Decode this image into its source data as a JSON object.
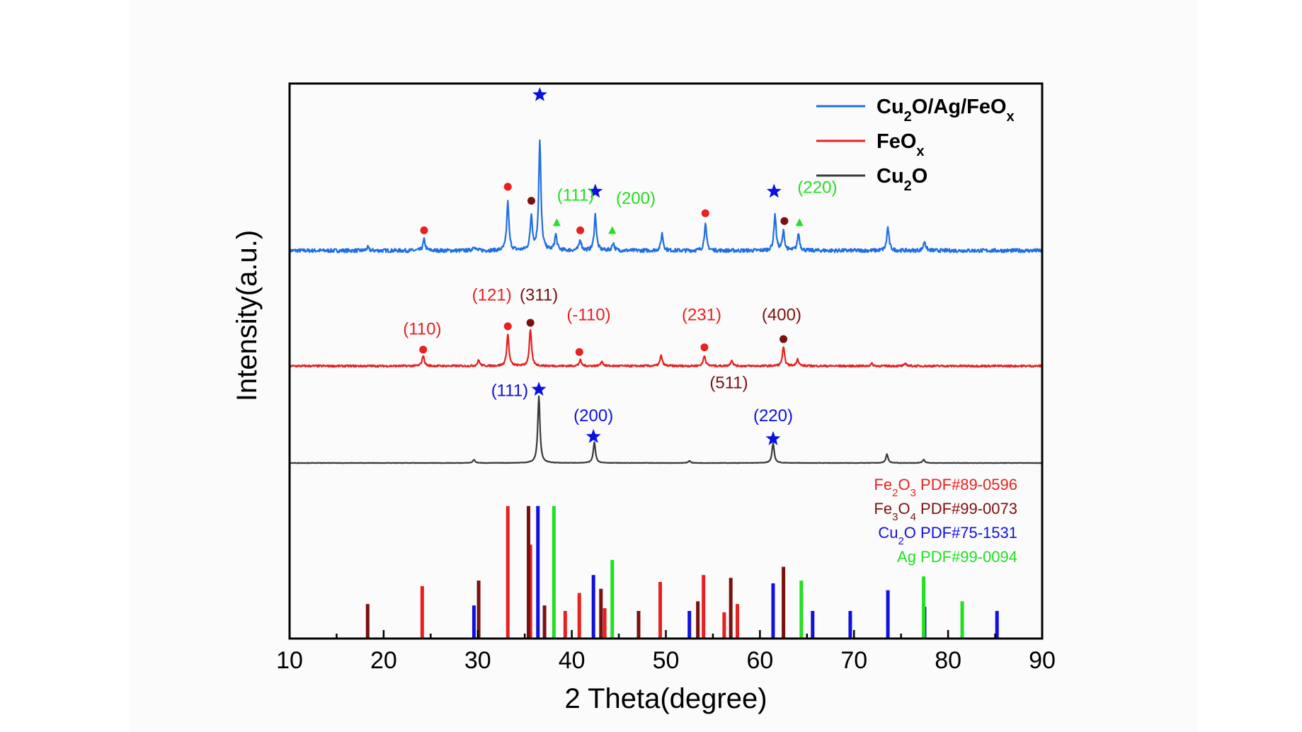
{
  "chart_data": {
    "type": "line",
    "title": "",
    "xlabel": "2 Theta(degree)",
    "ylabel": "Intensity(a.u.)",
    "xlim": [
      10,
      90
    ],
    "xticks": [
      "10",
      "20",
      "30",
      "40",
      "50",
      "60",
      "70",
      "80",
      "90"
    ],
    "legend": {
      "placement": "top-right",
      "entries": [
        {
          "main": "Cu",
          "sub1": "2",
          "mid": "O/Ag/FeO",
          "sub2": "x",
          "color": "#1f6fe0"
        },
        {
          "main": "FeO",
          "sub1": "x",
          "mid": "",
          "sub2": "",
          "color": "#e82020"
        },
        {
          "main": "Cu",
          "sub1": "2",
          "mid": "O",
          "sub2": "",
          "color": "#3a3a3a"
        }
      ]
    },
    "series": [
      {
        "name": "Cu2O/Ag/FeOx",
        "color": "#1f6fe0",
        "offset": 0.0,
        "noise": 0.012,
        "peaks": [
          [
            18.3,
            0.02
          ],
          [
            24.3,
            0.07
          ],
          [
            29.6,
            0.03
          ],
          [
            33.2,
            0.31
          ],
          [
            35.7,
            0.22
          ],
          [
            36.6,
            0.7
          ],
          [
            38.3,
            0.1
          ],
          [
            40.9,
            0.07
          ],
          [
            42.5,
            0.23
          ],
          [
            44.4,
            0.05
          ],
          [
            49.6,
            0.11
          ],
          [
            54.2,
            0.17
          ],
          [
            61.6,
            0.23
          ],
          [
            62.5,
            0.12
          ],
          [
            64.1,
            0.11
          ],
          [
            73.6,
            0.15
          ],
          [
            77.5,
            0.06
          ]
        ]
      },
      {
        "name": "FeOx",
        "color": "#e82020",
        "offset": 0.0,
        "noise": 0.008,
        "peaks": [
          [
            24.2,
            0.09
          ],
          [
            30.1,
            0.05
          ],
          [
            33.2,
            0.27
          ],
          [
            35.6,
            0.31
          ],
          [
            40.9,
            0.05
          ],
          [
            43.2,
            0.04
          ],
          [
            49.5,
            0.09
          ],
          [
            54.1,
            0.09
          ],
          [
            57.0,
            0.05
          ],
          [
            62.5,
            0.16
          ],
          [
            64.0,
            0.06
          ],
          [
            71.9,
            0.02
          ],
          [
            75.5,
            0.02
          ]
        ]
      },
      {
        "name": "Cu2O",
        "color": "#3a3a3a",
        "offset": 0.0,
        "noise": 0.002,
        "peaks": [
          [
            29.6,
            0.03
          ],
          [
            36.5,
            0.61
          ],
          [
            42.4,
            0.19
          ],
          [
            52.5,
            0.02
          ],
          [
            61.4,
            0.18
          ],
          [
            73.5,
            0.08
          ],
          [
            77.4,
            0.03
          ]
        ]
      }
    ],
    "reference_patterns": [
      {
        "label_pre": "Fe",
        "label_sub1": "2",
        "label_mid": "O",
        "label_sub2": "3",
        "label_post": " PDF#89-0596",
        "color": "#e82020",
        "lines": [
          [
            24.1,
            0.38
          ],
          [
            33.2,
            0.96
          ],
          [
            35.6,
            0.68
          ],
          [
            39.3,
            0.2
          ],
          [
            40.8,
            0.33
          ],
          [
            43.5,
            0.22
          ],
          [
            49.4,
            0.41
          ],
          [
            54.0,
            0.46
          ],
          [
            56.2,
            0.19
          ],
          [
            57.6,
            0.25
          ]
        ]
      },
      {
        "label_pre": "Fe",
        "label_sub1": "3",
        "label_mid": "O",
        "label_sub2": "4",
        "label_post": " PDF#99-0073",
        "color": "#7b1010",
        "lines": [
          [
            18.3,
            0.25
          ],
          [
            30.1,
            0.42
          ],
          [
            35.4,
            0.96
          ],
          [
            37.1,
            0.24
          ],
          [
            43.1,
            0.36
          ],
          [
            47.1,
            0.2
          ],
          [
            53.4,
            0.27
          ],
          [
            56.9,
            0.44
          ],
          [
            62.5,
            0.52
          ]
        ]
      },
      {
        "label_pre": "Cu",
        "label_sub1": "2",
        "label_mid": "O",
        "label_sub2": "",
        "label_post": "  PDF#75-1531",
        "color": "#1010e0",
        "lines": [
          [
            29.6,
            0.24
          ],
          [
            36.4,
            0.96
          ],
          [
            42.3,
            0.46
          ],
          [
            52.5,
            0.2
          ],
          [
            61.4,
            0.4
          ],
          [
            65.6,
            0.2
          ],
          [
            69.6,
            0.2
          ],
          [
            73.6,
            0.35
          ],
          [
            77.5,
            0.23
          ],
          [
            85.2,
            0.2
          ]
        ]
      },
      {
        "label_pre": "Ag",
        "label_sub1": "",
        "label_mid": "",
        "label_sub2": "",
        "label_post": "   PDF#99-0094",
        "color": "#22e022",
        "lines": [
          [
            38.1,
            0.96
          ],
          [
            44.3,
            0.57
          ],
          [
            64.4,
            0.42
          ],
          [
            77.4,
            0.45
          ],
          [
            81.5,
            0.27
          ]
        ]
      }
    ],
    "annotations": [
      {
        "panel": "Cu2O/Ag/FeOx",
        "marker": "star",
        "color": "#0a10e0",
        "x": 36.6,
        "intensity": 1.0
      },
      {
        "panel": "Cu2O/Ag/FeOx",
        "marker": "star",
        "color": "#0a10e0",
        "x": 42.5,
        "intensity": 0.38
      },
      {
        "panel": "Cu2O/Ag/FeOx",
        "marker": "star",
        "color": "#0a10e0",
        "x": 61.5,
        "intensity": 0.38
      },
      {
        "panel": "Cu2O/Ag/FeOx",
        "marker": "dot",
        "color": "#e82020",
        "x": 24.3,
        "intensity": 0.13
      },
      {
        "panel": "Cu2O/Ag/FeOx",
        "marker": "dot",
        "color": "#e82020",
        "x": 33.2,
        "intensity": 0.41
      },
      {
        "panel": "Cu2O/Ag/FeOx",
        "marker": "dot",
        "color": "#7b1010",
        "x": 35.7,
        "intensity": 0.32
      },
      {
        "panel": "Cu2O/Ag/FeOx",
        "marker": "dot",
        "color": "#e82020",
        "x": 40.9,
        "intensity": 0.13
      },
      {
        "panel": "Cu2O/Ag/FeOx",
        "marker": "dot",
        "color": "#e82020",
        "x": 54.2,
        "intensity": 0.24
      },
      {
        "panel": "Cu2O/Ag/FeOx",
        "marker": "dot",
        "color": "#7b1010",
        "x": 62.6,
        "intensity": 0.19
      },
      {
        "panel": "Cu2O/Ag/FeOx",
        "marker": "tri",
        "color": "#22e022",
        "x": 38.4,
        "intensity": 0.18
      },
      {
        "panel": "Cu2O/Ag/FeOx",
        "marker": "tri",
        "color": "#22e022",
        "x": 44.3,
        "intensity": 0.13
      },
      {
        "panel": "Cu2O/Ag/FeOx",
        "marker": "tri",
        "color": "#22e022",
        "x": 64.2,
        "intensity": 0.18
      },
      {
        "panel": "FeOx",
        "marker": "dot",
        "color": "#e82020",
        "x": 24.2,
        "intensity": 0.14
      },
      {
        "panel": "FeOx",
        "marker": "dot",
        "color": "#e82020",
        "x": 33.2,
        "intensity": 0.34
      },
      {
        "panel": "FeOx",
        "marker": "dot",
        "color": "#7b1010",
        "x": 35.6,
        "intensity": 0.37
      },
      {
        "panel": "FeOx",
        "marker": "dot",
        "color": "#e82020",
        "x": 40.8,
        "intensity": 0.12
      },
      {
        "panel": "FeOx",
        "marker": "dot",
        "color": "#e82020",
        "x": 54.1,
        "intensity": 0.16
      },
      {
        "panel": "FeOx",
        "marker": "dot",
        "color": "#7b1010",
        "x": 62.5,
        "intensity": 0.23
      },
      {
        "panel": "Cu2O",
        "marker": "star",
        "color": "#0a10e0",
        "x": 36.5,
        "intensity": 0.67
      },
      {
        "panel": "Cu2O",
        "marker": "star",
        "color": "#0a10e0",
        "x": 42.3,
        "intensity": 0.24
      },
      {
        "panel": "Cu2O",
        "marker": "star",
        "color": "#0a10e0",
        "x": 61.4,
        "intensity": 0.22
      }
    ],
    "hkl_labels": [
      {
        "panel": "Cu2O/Ag/FeOx",
        "text": "(111)",
        "color": "#22e022",
        "x": 40.4,
        "intensity": 0.32
      },
      {
        "panel": "Cu2O/Ag/FeOx",
        "text": "(200)",
        "color": "#22e022",
        "x": 46.8,
        "intensity": 0.3
      },
      {
        "panel": "Cu2O/Ag/FeOx",
        "text": "(220)",
        "color": "#22e022",
        "x": 66.1,
        "intensity": 0.37
      },
      {
        "panel": "FeOx",
        "text": "(110)",
        "color": "#e82020",
        "x": 24.1,
        "intensity": 0.27
      },
      {
        "panel": "FeOx",
        "text": "(121)",
        "color": "#e82020",
        "x": 31.5,
        "intensity": 0.56
      },
      {
        "panel": "FeOx",
        "text": "(311)",
        "color": "#7b1010",
        "x": 36.5,
        "intensity": 0.56
      },
      {
        "panel": "FeOx",
        "text": "(-110)",
        "color": "#e82020",
        "x": 41.8,
        "intensity": 0.39
      },
      {
        "panel": "FeOx",
        "text": "(231)",
        "color": "#e82020",
        "x": 53.8,
        "intensity": 0.39
      },
      {
        "panel": "FeOx",
        "text": "(400)",
        "color": "#7b1010",
        "x": 62.3,
        "intensity": 0.39
      },
      {
        "panel": "FeOx",
        "text": "(511)",
        "color": "#7b1010",
        "x": 56.7,
        "intensity": -0.19
      },
      {
        "panel": "Cu2O",
        "text": "(111)",
        "color": "#0a10e0",
        "x": 33.4,
        "intensity": 0.61
      },
      {
        "panel": "Cu2O",
        "text": "(200)",
        "color": "#0a10e0",
        "x": 42.3,
        "intensity": 0.38
      },
      {
        "panel": "Cu2O",
        "text": "(220)",
        "color": "#0a10e0",
        "x": 61.4,
        "intensity": 0.38
      }
    ]
  }
}
